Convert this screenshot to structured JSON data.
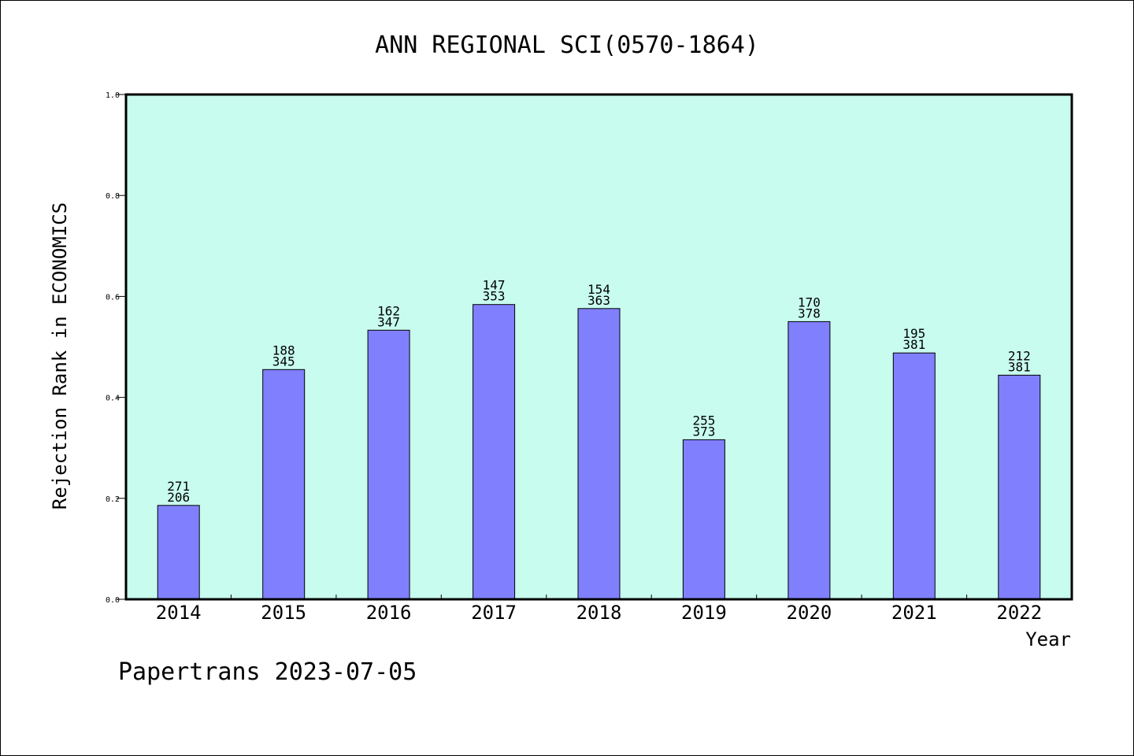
{
  "chart_data": {
    "type": "bar",
    "title": "ANN REGIONAL SCI(0570-1864)",
    "xlabel": "Year",
    "ylabel": "Rejection Rank in ECONOMICS",
    "ylim": [
      0,
      1.0
    ],
    "yticks": [
      "0.0",
      "0.2",
      "0.4",
      "0.6",
      "0.8",
      "1.0"
    ],
    "categories": [
      "2014",
      "2015",
      "2016",
      "2017",
      "2018",
      "2019",
      "2020",
      "2021",
      "2022"
    ],
    "values": [
      0.186,
      0.455,
      0.533,
      0.584,
      0.576,
      0.316,
      0.55,
      0.488,
      0.444
    ],
    "rank_labels": [
      "271",
      "188",
      "162",
      "147",
      "154",
      "255",
      "170",
      "195",
      "212"
    ],
    "total_labels": [
      "206",
      "345",
      "347",
      "353",
      "363",
      "373",
      "378",
      "381",
      "381"
    ],
    "colors": {
      "plot_bg": "#c8fcee",
      "bar": "#8080ff"
    },
    "grid": false
  },
  "footer": "Papertrans 2023-07-05"
}
